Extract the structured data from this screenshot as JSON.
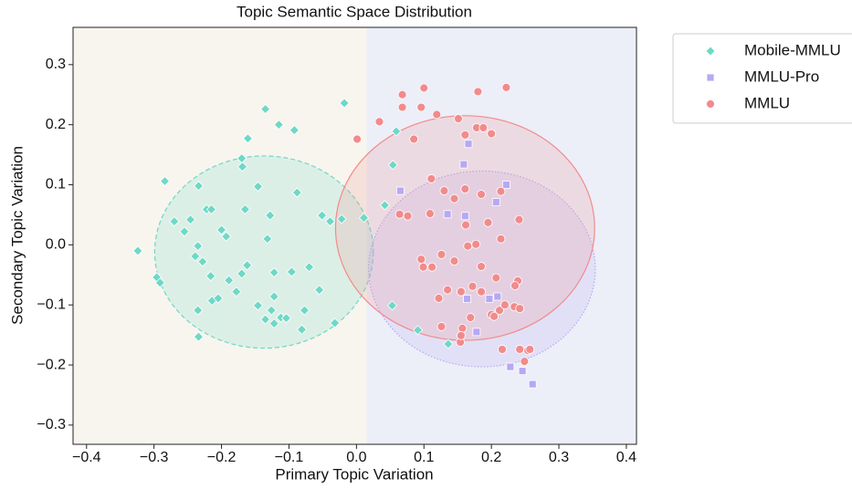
{
  "chart_data": {
    "type": "scatter",
    "title": "Topic Semantic Space Distribution",
    "xlabel": "Primary Topic Variation",
    "ylabel": "Secondary Topic Variation",
    "xlim": [
      -0.42,
      0.415
    ],
    "ylim": [
      -0.332,
      0.362
    ],
    "xticks": [
      {
        "value": -0.4,
        "label": "−0.4"
      },
      {
        "value": -0.3,
        "label": "−0.3"
      },
      {
        "value": -0.2,
        "label": "−0.2"
      },
      {
        "value": -0.1,
        "label": "−0.1"
      },
      {
        "value": 0,
        "label": "0.0"
      },
      0.1,
      0.2,
      0.3,
      0.4
    ],
    "yticks": [
      {
        "value": -0.3,
        "label": "−0.3"
      },
      {
        "value": -0.2,
        "label": "−0.2"
      },
      {
        "value": -0.1,
        "label": "−0.1"
      },
      {
        "value": 0,
        "label": "0.0"
      },
      0.1,
      0.2,
      0.3
    ],
    "split_x": 0.015,
    "region_colors": [
      "#f8f5ee",
      "#eceef8"
    ],
    "legend": "outside upper right",
    "series": [
      {
        "name": "Mobile-MMLU",
        "color": "#6fd8c6",
        "marker": "diamond",
        "ellipse": {
          "center": [
            -0.137,
            -0.012
          ],
          "radius": [
            0.162,
            0.16
          ],
          "linestyle": "dashed"
        },
        "x": [
          -0.324,
          -0.296,
          -0.291,
          -0.284,
          -0.27,
          -0.234,
          -0.246,
          -0.239,
          -0.222,
          -0.215,
          -0.235,
          -0.228,
          -0.216,
          -0.2,
          -0.193,
          -0.214,
          -0.235,
          -0.234,
          -0.205,
          -0.189,
          -0.17,
          -0.161,
          -0.135,
          -0.115,
          -0.092,
          -0.169,
          -0.146,
          -0.165,
          -0.162,
          -0.128,
          -0.132,
          -0.122,
          -0.146,
          -0.122,
          -0.135,
          -0.122,
          -0.126,
          -0.112,
          -0.104,
          -0.088,
          -0.096,
          -0.077,
          -0.081,
          -0.07,
          -0.055,
          -0.051,
          -0.039,
          -0.032,
          -0.018,
          -0.022,
          0.011,
          0.059,
          0.054,
          0.042,
          0.053,
          0.091,
          0.136,
          -0.255,
          -0.178,
          -0.17
        ],
        "values": [
          -0.01,
          -0.054,
          -0.063,
          0.106,
          0.039,
          0.098,
          0.042,
          -0.019,
          0.059,
          0.059,
          -0.002,
          -0.028,
          -0.052,
          0.025,
          0.014,
          -0.093,
          -0.109,
          -0.153,
          -0.089,
          -0.059,
          0.144,
          0.177,
          0.226,
          0.2,
          0.191,
          0.13,
          0.097,
          0.059,
          -0.034,
          0.049,
          0.01,
          -0.046,
          -0.101,
          -0.086,
          -0.124,
          -0.131,
          -0.109,
          -0.121,
          -0.122,
          0.087,
          -0.045,
          -0.109,
          -0.141,
          -0.037,
          -0.075,
          0.049,
          0.039,
          -0.13,
          0.236,
          0.043,
          0.045,
          0.189,
          0.133,
          0.066,
          -0.101,
          -0.142,
          -0.165,
          0.022,
          -0.078,
          -0.048
        ]
      },
      {
        "name": "MMLU-Pro",
        "color": "#b7a8f4",
        "marker": "square",
        "ellipse": {
          "center": [
            0.186,
            -0.04
          ],
          "radius": [
            0.168,
            0.163
          ],
          "linestyle": "dotted"
        },
        "x": [
          0.166,
          0.159,
          0.065,
          0.135,
          0.161,
          0.222,
          0.207,
          0.164,
          0.209,
          0.197,
          0.178,
          0.228,
          0.246,
          0.261
        ],
        "values": [
          0.168,
          0.134,
          0.09,
          0.051,
          0.048,
          0.1,
          0.071,
          -0.09,
          -0.086,
          -0.09,
          -0.145,
          -0.203,
          -0.21,
          -0.232
        ]
      },
      {
        "name": "MMLU",
        "color": "#f28b8b",
        "marker": "circle",
        "ellipse": {
          "center": [
            0.161,
            0.028
          ],
          "radius": [
            0.192,
            0.187
          ],
          "linestyle": "solid"
        },
        "x": [
          0.068,
          0.1,
          0.068,
          0.096,
          0.034,
          0.001,
          0.119,
          0.151,
          0.178,
          0.188,
          0.2,
          0.161,
          0.18,
          0.222,
          0.085,
          0.13,
          0.111,
          0.145,
          0.161,
          0.185,
          0.214,
          0.076,
          0.064,
          0.109,
          0.162,
          0.195,
          0.241,
          0.177,
          0.165,
          0.214,
          0.096,
          0.099,
          0.112,
          0.145,
          0.126,
          0.185,
          0.172,
          0.135,
          0.155,
          0.185,
          0.207,
          0.239,
          0.212,
          0.2,
          0.204,
          0.22,
          0.234,
          0.242,
          0.169,
          0.157,
          0.126,
          0.154,
          0.155,
          0.216,
          0.242,
          0.254,
          0.257,
          0.249,
          0.235,
          0.122
        ],
        "values": [
          0.25,
          0.261,
          0.229,
          0.229,
          0.205,
          0.176,
          0.217,
          0.21,
          0.195,
          0.195,
          0.185,
          0.183,
          0.255,
          0.262,
          0.176,
          0.09,
          0.11,
          0.077,
          0.093,
          0.084,
          0.089,
          0.048,
          0.051,
          0.052,
          0.033,
          0.037,
          0.042,
          0.001,
          -0.002,
          0.01,
          -0.024,
          -0.037,
          -0.037,
          -0.027,
          -0.016,
          -0.036,
          -0.069,
          -0.075,
          -0.078,
          -0.078,
          -0.055,
          -0.06,
          -0.109,
          -0.116,
          -0.119,
          -0.1,
          -0.103,
          -0.106,
          -0.121,
          -0.139,
          -0.136,
          -0.162,
          -0.151,
          -0.174,
          -0.174,
          -0.176,
          -0.174,
          -0.194,
          -0.068,
          -0.089
        ]
      }
    ]
  }
}
